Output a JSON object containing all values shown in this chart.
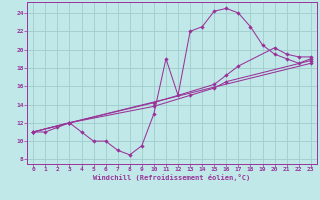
{
  "background_color": "#c0e8e8",
  "grid_color": "#a0cccc",
  "line_color": "#993399",
  "xlabel": "Windchill (Refroidissement éolien,°C)",
  "xlabel_color": "#993399",
  "tick_color": "#993399",
  "xlim": [
    -0.5,
    23.5
  ],
  "ylim": [
    7.5,
    25.2
  ],
  "xticks": [
    0,
    1,
    2,
    3,
    4,
    5,
    6,
    7,
    8,
    9,
    10,
    11,
    12,
    13,
    14,
    15,
    16,
    17,
    18,
    19,
    20,
    21,
    22,
    23
  ],
  "yticks": [
    8,
    10,
    12,
    14,
    16,
    18,
    20,
    22,
    24
  ],
  "line1_x": [
    0,
    1,
    2,
    3,
    4,
    5,
    6,
    7,
    8,
    9,
    10,
    11,
    12,
    13,
    14,
    15,
    16,
    17,
    18,
    19,
    20,
    21,
    22,
    23
  ],
  "line1_y": [
    11,
    11,
    11.5,
    12,
    11,
    10,
    10,
    9,
    8.5,
    9.5,
    13,
    19,
    15,
    22,
    22.5,
    24.2,
    24.5,
    24,
    22.5,
    20.5,
    19.5,
    19,
    18.5,
    19
  ],
  "line2_x": [
    0,
    3,
    10,
    15,
    16,
    17,
    20,
    21,
    22,
    23
  ],
  "line2_y": [
    11,
    12,
    14.2,
    16.2,
    17.2,
    18.2,
    20.2,
    19.5,
    19.2,
    19.2
  ],
  "line3_x": [
    0,
    3,
    10,
    13,
    15,
    16,
    23
  ],
  "line3_y": [
    11,
    12,
    13.8,
    15,
    15.8,
    16.5,
    18.8
  ],
  "line4_x": [
    0,
    3,
    23
  ],
  "line4_y": [
    11,
    12,
    18.5
  ]
}
